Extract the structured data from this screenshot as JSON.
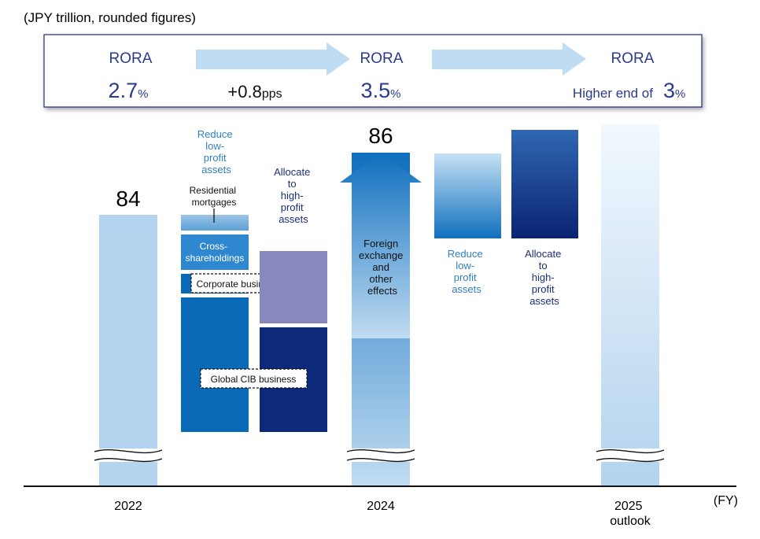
{
  "unit_note": "(JPY trillion, rounded figures)",
  "fy_label": "(FY)",
  "colors": {
    "rora_text": "#2b3a8c",
    "light_bar": "#b3d3ee",
    "light_bar_top": "#f2f8fd",
    "mid_blue": "#2f88cf",
    "dark_blue": "#0a6ab6",
    "navy": "#0d2a7a",
    "purple": "#8888be",
    "label_blue": "#2f7fc1",
    "label_navy": "#1c2f7a",
    "arrow": "#bfdcf2"
  },
  "rora_panel": {
    "items": [
      {
        "label": "RORA",
        "value": "2.7",
        "unit": "%"
      },
      {
        "label": "RORA",
        "value": "3.5",
        "unit": "%"
      },
      {
        "label": "RORA",
        "prefix": "Higher end of",
        "value": "3",
        "unit": "%"
      }
    ],
    "change": {
      "value": "+0.8",
      "unit": "pps"
    }
  },
  "chart_data": {
    "type": "waterfall",
    "title": "",
    "unit": "JPY trillion",
    "xlabel": "(FY)",
    "ylabel": "",
    "categories": [
      "2022",
      "2024",
      "2025 outlook"
    ],
    "totals": [
      {
        "category": "2022",
        "value": 84,
        "label": "84"
      },
      {
        "category": "2024",
        "value": 86,
        "label": "86"
      },
      {
        "category": "2025 outlook",
        "value": null,
        "label": ""
      }
    ],
    "steps_2022_to_2024": [
      {
        "name": "Reduce low-profit assets",
        "direction": "decrease",
        "components": [
          "Residential mortgages",
          "Cross-shareholdings",
          "Corporate business in Japan",
          "Global CIB business"
        ]
      },
      {
        "name": "Allocate to high-profit assets",
        "direction": "increase"
      },
      {
        "name": "Foreign exchange and other effects",
        "direction": "increase"
      }
    ],
    "steps_2024_to_2025": [
      {
        "name": "Reduce low-profit assets",
        "direction": "decrease"
      },
      {
        "name": "Allocate to high-profit assets",
        "direction": "increase"
      }
    ]
  },
  "labels": {
    "reduce_1": [
      "Reduce",
      "low-",
      "profit",
      "assets"
    ],
    "allocate_1": [
      "Allocate",
      "to",
      "high-",
      "profit",
      "assets"
    ],
    "residential": [
      "Residential",
      "mortgages"
    ],
    "cross": [
      "Cross-",
      "shareholdings"
    ],
    "corporate": "Corporate business in Japan",
    "global": "Global CIB business",
    "fx": [
      "Foreign",
      "exchange",
      "and",
      "other",
      "effects"
    ],
    "reduce_2": [
      "Reduce",
      "low-",
      "profit",
      "assets"
    ],
    "allocate_2": [
      "Allocate",
      "to",
      "high-",
      "profit",
      "assets"
    ],
    "year_2022": "2022",
    "year_2024": "2024",
    "year_2025": [
      "2025",
      "outlook"
    ]
  }
}
